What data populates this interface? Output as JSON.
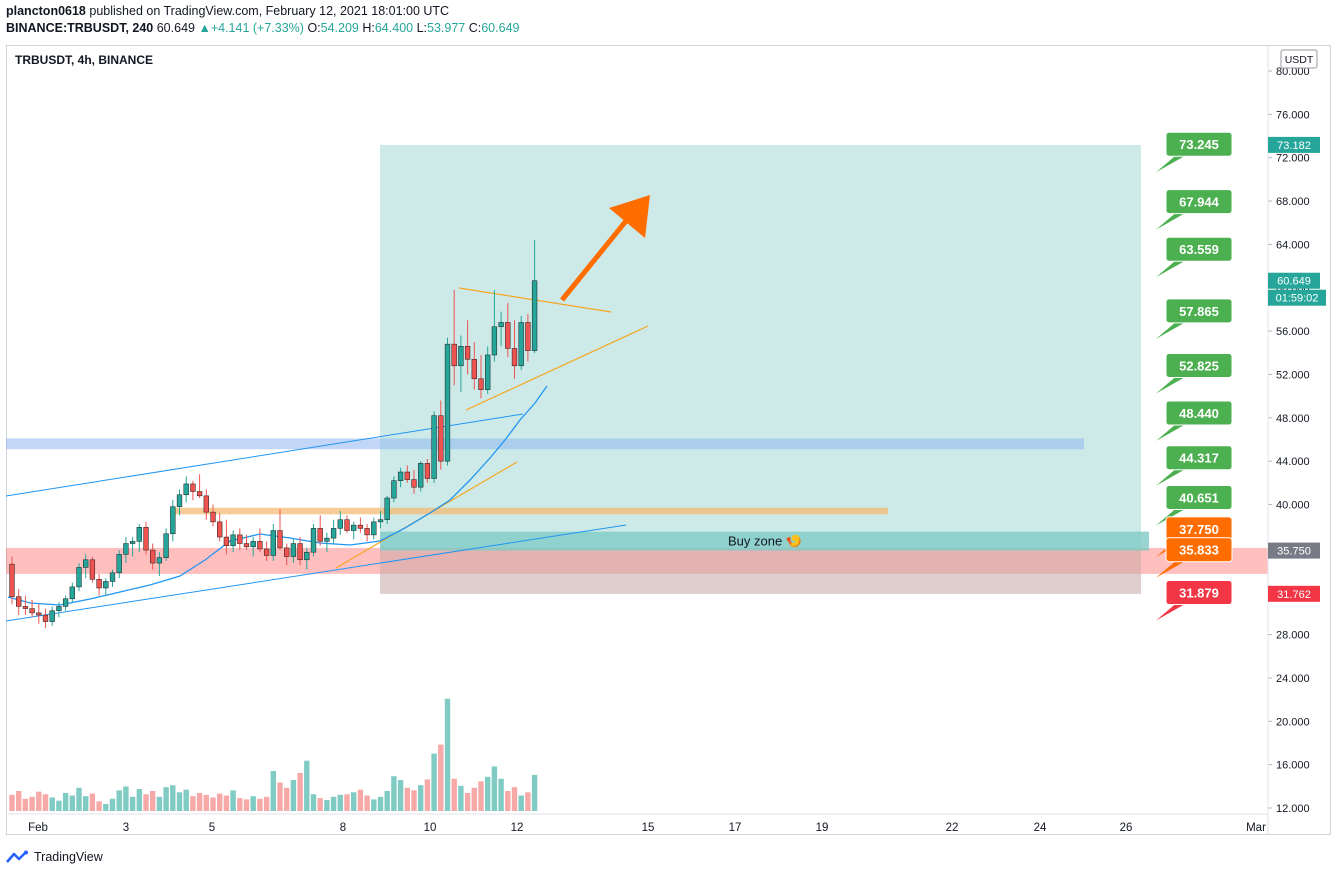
{
  "header": {
    "author": "plancton0618",
    "published_text": "published on TradingView.com, February 12, 2021 18:01:00 UTC",
    "symbol": "BINANCE:TRBUSDT, 240",
    "last_price": "60.649",
    "change": "+4.141 (+7.33%)",
    "ohlc": {
      "o_label": "O:",
      "o": "54.209",
      "h_label": "H:",
      "h": "64.400",
      "l_label": "L:",
      "l": "53.977",
      "c_label": "C:",
      "c": "60.649"
    }
  },
  "chart_title": "TRBUSDT, 4h, BINANCE",
  "footer": {
    "brand": "TradingView"
  },
  "colors": {
    "bull": "#26a69a",
    "bear": "#ef5350",
    "target": "#4caf50",
    "orange": "#ff6d00",
    "stop": "#f23645",
    "zone": "#b2dfdb",
    "ma": "#2196f3"
  },
  "chart_data": {
    "type": "candlestick",
    "symbol": "TRBUSDT",
    "timeframe": "4h",
    "exchange": "BINANCE",
    "currency": "USDT",
    "y_axis": {
      "min": 12,
      "max": 80,
      "ticks": [
        80,
        76,
        72,
        68,
        64,
        60,
        56,
        52,
        48,
        44,
        40,
        36,
        32,
        28,
        24,
        20,
        16,
        12
      ],
      "tick_labels": [
        "80.000",
        "76.000",
        "72.000",
        "68.000",
        "64.000",
        "60.000",
        "56.000",
        "52.000",
        "48.000",
        "44.000",
        "40.000",
        "36.000",
        "32.000",
        "28.000",
        "24.000",
        "20.000",
        "16.000",
        "12.000"
      ]
    },
    "x_axis": {
      "ticks": [
        "Feb",
        "3",
        "5",
        "8",
        "10",
        "12",
        "15",
        "17",
        "19",
        "22",
        "24",
        "26",
        "Mar"
      ]
    },
    "price_tags": [
      {
        "label": "USDT",
        "value": null,
        "kind": "currency"
      },
      {
        "label": "73.182",
        "value": 73.182,
        "kind": "teal"
      },
      {
        "label": "60.649",
        "value": 60.649,
        "kind": "teal"
      },
      {
        "label": "01:59:02",
        "value": null,
        "kind": "timer"
      },
      {
        "label": "35.750",
        "value": 35.75,
        "kind": "gray"
      },
      {
        "label": "31.762",
        "value": 31.762,
        "kind": "red"
      }
    ],
    "targets": [
      {
        "label": "73.245",
        "value": 73.245,
        "color": "green"
      },
      {
        "label": "67.944",
        "value": 67.944,
        "color": "green"
      },
      {
        "label": "63.559",
        "value": 63.559,
        "color": "green"
      },
      {
        "label": "57.865",
        "value": 57.865,
        "color": "green"
      },
      {
        "label": "52.825",
        "value": 52.825,
        "color": "green"
      },
      {
        "label": "48.440",
        "value": 48.44,
        "color": "green"
      },
      {
        "label": "44.317",
        "value": 44.317,
        "color": "green"
      },
      {
        "label": "40.651",
        "value": 40.651,
        "color": "green"
      },
      {
        "label": "37.750",
        "value": 37.75,
        "color": "orange"
      },
      {
        "label": "35.833",
        "value": 35.833,
        "color": "orange"
      },
      {
        "label": "31.879",
        "value": 31.879,
        "color": "red"
      }
    ],
    "buy_zone": {
      "label": "Buy zone 🍤",
      "low": 35.75,
      "high": 37.5
    },
    "target_zone": {
      "low": 31.762,
      "high": 73.182
    },
    "support_zone": {
      "low": 33.6,
      "high": 36.0
    },
    "resistance_band": {
      "low": 45.1,
      "high": 46.1
    },
    "candles": [
      {
        "o": 34.5,
        "h": 35.2,
        "l": 30.8,
        "c": 31.5,
        "v": 14.5
      },
      {
        "o": 31.5,
        "h": 32.2,
        "l": 29.8,
        "c": 30.6,
        "v": 15.1
      },
      {
        "o": 30.6,
        "h": 31.6,
        "l": 29.8,
        "c": 30.4,
        "v": 13.9
      },
      {
        "o": 30.4,
        "h": 31.2,
        "l": 29.6,
        "c": 30.0,
        "v": 14.2
      },
      {
        "o": 30.0,
        "h": 30.8,
        "l": 29.0,
        "c": 29.8,
        "v": 15.0
      },
      {
        "o": 29.8,
        "h": 30.4,
        "l": 28.6,
        "c": 29.2,
        "v": 14.6
      },
      {
        "o": 29.2,
        "h": 30.6,
        "l": 28.8,
        "c": 30.2,
        "v": 14.1
      },
      {
        "o": 30.2,
        "h": 31.0,
        "l": 29.6,
        "c": 30.6,
        "v": 13.6
      },
      {
        "o": 30.6,
        "h": 31.6,
        "l": 30.2,
        "c": 31.3,
        "v": 14.8
      },
      {
        "o": 31.3,
        "h": 32.8,
        "l": 31.0,
        "c": 32.4,
        "v": 14.4
      },
      {
        "o": 32.4,
        "h": 34.6,
        "l": 32.0,
        "c": 34.2,
        "v": 15.6
      },
      {
        "o": 34.2,
        "h": 35.4,
        "l": 33.2,
        "c": 34.9,
        "v": 14.3
      },
      {
        "o": 34.9,
        "h": 35.2,
        "l": 32.8,
        "c": 33.1,
        "v": 14.7
      },
      {
        "o": 33.1,
        "h": 33.6,
        "l": 31.6,
        "c": 32.3,
        "v": 13.5
      },
      {
        "o": 32.3,
        "h": 33.2,
        "l": 31.6,
        "c": 32.9,
        "v": 13.1
      },
      {
        "o": 32.9,
        "h": 34.0,
        "l": 32.4,
        "c": 33.7,
        "v": 13.9
      },
      {
        "o": 33.7,
        "h": 35.8,
        "l": 33.2,
        "c": 35.4,
        "v": 15.2
      },
      {
        "o": 35.4,
        "h": 37.0,
        "l": 34.6,
        "c": 36.4,
        "v": 15.8
      },
      {
        "o": 36.4,
        "h": 37.0,
        "l": 35.2,
        "c": 36.6,
        "v": 14.2
      },
      {
        "o": 36.6,
        "h": 38.2,
        "l": 35.6,
        "c": 37.9,
        "v": 15.4
      },
      {
        "o": 37.9,
        "h": 38.4,
        "l": 35.4,
        "c": 35.8,
        "v": 14.6
      },
      {
        "o": 35.8,
        "h": 36.4,
        "l": 34.0,
        "c": 34.6,
        "v": 15.1
      },
      {
        "o": 34.6,
        "h": 35.6,
        "l": 33.4,
        "c": 35.1,
        "v": 14.2
      },
      {
        "o": 35.1,
        "h": 37.8,
        "l": 34.8,
        "c": 37.3,
        "v": 15.7
      },
      {
        "o": 37.3,
        "h": 40.4,
        "l": 36.6,
        "c": 39.8,
        "v": 16.0
      },
      {
        "o": 39.8,
        "h": 41.4,
        "l": 39.0,
        "c": 40.9,
        "v": 14.9
      },
      {
        "o": 40.9,
        "h": 42.6,
        "l": 40.2,
        "c": 41.9,
        "v": 15.3
      },
      {
        "o": 41.9,
        "h": 42.2,
        "l": 40.4,
        "c": 41.2,
        "v": 14.3
      },
      {
        "o": 41.2,
        "h": 42.8,
        "l": 40.6,
        "c": 40.8,
        "v": 14.8
      },
      {
        "o": 40.8,
        "h": 41.4,
        "l": 38.6,
        "c": 39.3,
        "v": 14.5
      },
      {
        "o": 39.3,
        "h": 40.0,
        "l": 38.0,
        "c": 38.4,
        "v": 14.1
      },
      {
        "o": 38.4,
        "h": 39.2,
        "l": 36.6,
        "c": 37.0,
        "v": 14.7
      },
      {
        "o": 37.0,
        "h": 38.6,
        "l": 35.4,
        "c": 36.2,
        "v": 14.4
      },
      {
        "o": 36.2,
        "h": 37.6,
        "l": 35.6,
        "c": 37.2,
        "v": 15.2
      },
      {
        "o": 37.2,
        "h": 37.8,
        "l": 35.8,
        "c": 36.4,
        "v": 14.0
      },
      {
        "o": 36.4,
        "h": 37.2,
        "l": 35.8,
        "c": 36.1,
        "v": 13.8
      },
      {
        "o": 36.1,
        "h": 37.0,
        "l": 35.2,
        "c": 36.6,
        "v": 14.3
      },
      {
        "o": 36.6,
        "h": 37.8,
        "l": 35.6,
        "c": 35.9,
        "v": 13.9
      },
      {
        "o": 35.9,
        "h": 36.6,
        "l": 34.8,
        "c": 35.3,
        "v": 14.2
      },
      {
        "o": 35.3,
        "h": 38.2,
        "l": 34.8,
        "c": 37.6,
        "v": 18.2
      },
      {
        "o": 37.6,
        "h": 39.6,
        "l": 35.8,
        "c": 36.0,
        "v": 16.4
      },
      {
        "o": 36.0,
        "h": 36.4,
        "l": 34.4,
        "c": 35.2,
        "v": 15.6
      },
      {
        "o": 35.2,
        "h": 36.8,
        "l": 34.6,
        "c": 36.4,
        "v": 16.8
      },
      {
        "o": 36.4,
        "h": 37.0,
        "l": 34.4,
        "c": 34.9,
        "v": 17.9
      },
      {
        "o": 34.9,
        "h": 36.0,
        "l": 34.0,
        "c": 35.6,
        "v": 19.8
      },
      {
        "o": 35.6,
        "h": 38.2,
        "l": 35.2,
        "c": 37.8,
        "v": 14.6
      },
      {
        "o": 37.8,
        "h": 39.0,
        "l": 36.2,
        "c": 36.6,
        "v": 14.0
      },
      {
        "o": 36.6,
        "h": 37.4,
        "l": 35.6,
        "c": 36.9,
        "v": 13.7
      },
      {
        "o": 36.9,
        "h": 38.6,
        "l": 36.4,
        "c": 37.8,
        "v": 14.2
      },
      {
        "o": 37.8,
        "h": 39.4,
        "l": 37.2,
        "c": 38.6,
        "v": 14.5
      },
      {
        "o": 38.6,
        "h": 39.0,
        "l": 37.4,
        "c": 37.6,
        "v": 14.6
      },
      {
        "o": 37.6,
        "h": 38.4,
        "l": 36.8,
        "c": 38.1,
        "v": 14.9
      },
      {
        "o": 38.1,
        "h": 38.8,
        "l": 37.4,
        "c": 37.8,
        "v": 15.3
      },
      {
        "o": 37.8,
        "h": 38.2,
        "l": 36.6,
        "c": 37.2,
        "v": 14.4
      },
      {
        "o": 37.2,
        "h": 38.8,
        "l": 36.8,
        "c": 38.4,
        "v": 13.8
      },
      {
        "o": 38.4,
        "h": 39.4,
        "l": 37.8,
        "c": 38.6,
        "v": 14.2
      },
      {
        "o": 38.6,
        "h": 40.8,
        "l": 38.2,
        "c": 40.6,
        "v": 15.1
      },
      {
        "o": 40.6,
        "h": 42.6,
        "l": 40.2,
        "c": 42.2,
        "v": 17.4
      },
      {
        "o": 42.2,
        "h": 43.4,
        "l": 41.6,
        "c": 43.0,
        "v": 16.8
      },
      {
        "o": 43.0,
        "h": 43.6,
        "l": 42.0,
        "c": 42.3,
        "v": 15.6
      },
      {
        "o": 42.3,
        "h": 43.2,
        "l": 41.0,
        "c": 41.6,
        "v": 15.2
      },
      {
        "o": 41.6,
        "h": 44.0,
        "l": 41.2,
        "c": 43.8,
        "v": 16.0
      },
      {
        "o": 43.8,
        "h": 44.2,
        "l": 42.0,
        "c": 42.4,
        "v": 16.9
      },
      {
        "o": 42.4,
        "h": 48.6,
        "l": 42.0,
        "c": 48.2,
        "v": 20.9
      },
      {
        "o": 48.2,
        "h": 49.6,
        "l": 43.2,
        "c": 44.0,
        "v": 22.3
      },
      {
        "o": 44.0,
        "h": 55.4,
        "l": 43.6,
        "c": 54.8,
        "v": 29.4
      },
      {
        "o": 54.8,
        "h": 59.8,
        "l": 51.0,
        "c": 52.8,
        "v": 17.0
      },
      {
        "o": 52.8,
        "h": 55.6,
        "l": 50.4,
        "c": 54.6,
        "v": 15.9
      },
      {
        "o": 54.6,
        "h": 57.0,
        "l": 52.0,
        "c": 53.4,
        "v": 14.8
      },
      {
        "o": 53.4,
        "h": 55.0,
        "l": 50.6,
        "c": 51.6,
        "v": 15.6
      },
      {
        "o": 51.6,
        "h": 53.8,
        "l": 49.8,
        "c": 50.6,
        "v": 16.6
      },
      {
        "o": 50.6,
        "h": 54.6,
        "l": 50.2,
        "c": 53.8,
        "v": 17.3
      },
      {
        "o": 53.8,
        "h": 59.8,
        "l": 53.2,
        "c": 56.4,
        "v": 18.9
      },
      {
        "o": 56.4,
        "h": 57.8,
        "l": 54.6,
        "c": 56.8,
        "v": 17.0
      },
      {
        "o": 56.8,
        "h": 58.6,
        "l": 53.6,
        "c": 54.4,
        "v": 15.1
      },
      {
        "o": 54.4,
        "h": 57.0,
        "l": 51.6,
        "c": 52.8,
        "v": 15.7
      },
      {
        "o": 52.8,
        "h": 57.4,
        "l": 52.4,
        "c": 56.8,
        "v": 14.4
      },
      {
        "o": 56.8,
        "h": 57.6,
        "l": 53.2,
        "c": 54.2,
        "v": 14.9
      },
      {
        "o": 54.2,
        "h": 64.4,
        "l": 53.977,
        "c": 60.649,
        "v": 17.6
      }
    ]
  }
}
